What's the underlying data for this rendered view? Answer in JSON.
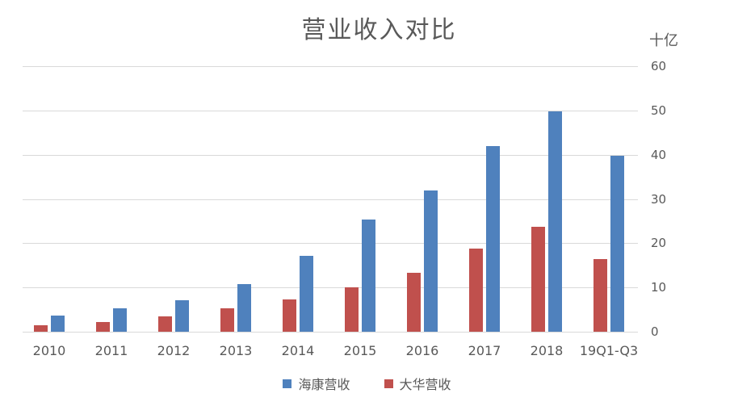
{
  "chart_data": {
    "type": "bar",
    "title": "营业收入对比",
    "unit_label": "十亿",
    "categories": [
      "2010",
      "2011",
      "2012",
      "2013",
      "2014",
      "2015",
      "2016",
      "2017",
      "2018",
      "19Q1-Q3"
    ],
    "series": [
      {
        "name": "海康营收",
        "key": "haikang-revenue",
        "color": "#4F81BD",
        "values": [
          3.6,
          5.2,
          7.2,
          10.7,
          17.2,
          25.3,
          31.9,
          41.9,
          49.8,
          39.8
        ]
      },
      {
        "name": "大华营收",
        "key": "dahua-revenue",
        "color": "#C0504D",
        "values": [
          1.5,
          2.1,
          3.5,
          5.2,
          7.3,
          10.1,
          13.3,
          18.8,
          23.7,
          16.4
        ]
      }
    ],
    "y_axis": {
      "min": 0,
      "max": 60,
      "step": 10,
      "side": "right",
      "tick_labels": [
        "0",
        "10",
        "20",
        "30",
        "40",
        "50",
        "60"
      ]
    },
    "grid": true,
    "legend_position": "bottom-center",
    "colors": {
      "background": "#FFFFFF",
      "grid_line": "#D9D9D9",
      "axis_text": "#595959",
      "title_text": "#595959"
    }
  }
}
